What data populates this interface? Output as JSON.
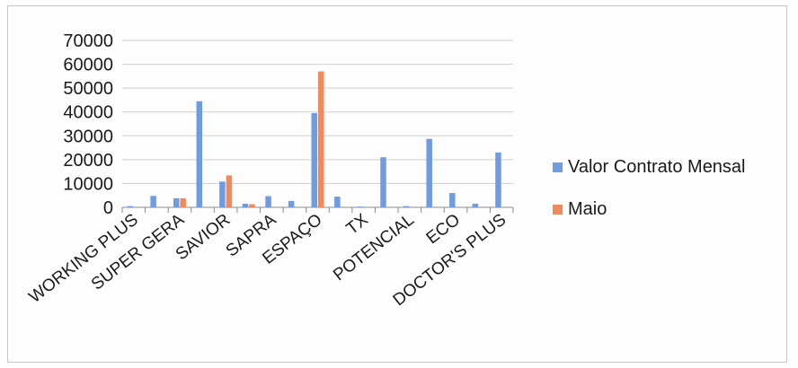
{
  "chart_data": {
    "type": "bar",
    "title": "",
    "xlabel": "",
    "ylabel": "",
    "ylim": [
      0,
      70000
    ],
    "yticks": [
      0,
      10000,
      20000,
      30000,
      40000,
      50000,
      60000,
      70000
    ],
    "grid": true,
    "legend_position": "right",
    "categories": [
      "WORKING PLUS",
      "",
      "SUPER GERA",
      "",
      "SAVIOR",
      "",
      "SAPRA",
      "",
      "ESPAÇO",
      "",
      "TX",
      "",
      "POTENCIAL",
      "",
      "ECO",
      "",
      "DOCTOR'S PLUS"
    ],
    "series": [
      {
        "name": "Valor Contrato Mensal",
        "color": "#6f9be0",
        "values": [
          500,
          4800,
          3800,
          44500,
          10800,
          1500,
          4700,
          2700,
          39500,
          4500,
          300,
          21000,
          500,
          28700,
          6000,
          1500,
          23000
        ]
      },
      {
        "name": "Maio",
        "color": "#ef8a5d",
        "values": [
          0,
          0,
          3800,
          0,
          13400,
          1300,
          0,
          0,
          57000,
          0,
          0,
          0,
          0,
          0,
          0,
          0,
          0
        ]
      }
    ]
  }
}
